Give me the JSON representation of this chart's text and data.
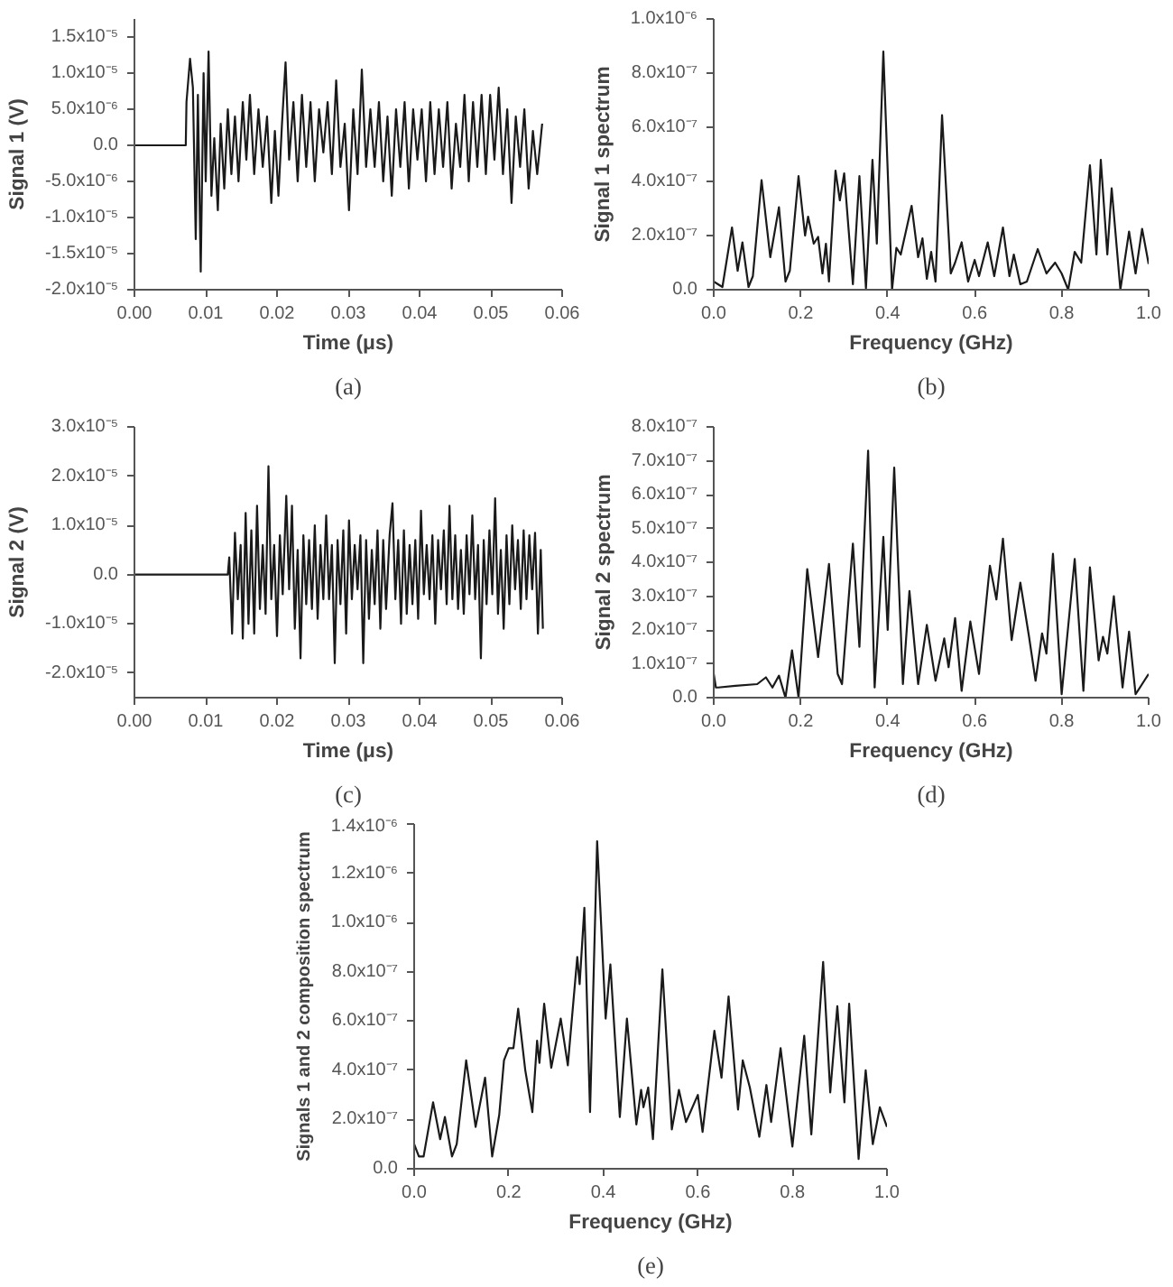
{
  "chart_data": [
    {
      "type": "line",
      "xlabel": "Time (μs)",
      "ylabel": "Signal 1 (V)",
      "annotations": [
        "(a)"
      ],
      "xlim": [
        0,
        0.06
      ],
      "ylim": [
        -2e-05,
        1.75e-05
      ],
      "xticks": [
        {
          "value": 0,
          "label": "0.00"
        },
        {
          "value": 0.01,
          "label": "0.01"
        },
        {
          "value": 0.02,
          "label": "0.02"
        },
        {
          "value": 0.03,
          "label": "0.03"
        },
        {
          "value": 0.04,
          "label": "0.04"
        },
        {
          "value": 0.05,
          "label": "0.05"
        },
        {
          "value": 0.06,
          "label": "0.06"
        }
      ],
      "yticks": [
        {
          "value": -2e-05,
          "label": "-2.0x10⁻⁵"
        },
        {
          "value": -1.5e-05,
          "label": "-1.5x10⁻⁵"
        },
        {
          "value": -1e-05,
          "label": "-1.0x10⁻⁵"
        },
        {
          "value": -5e-06,
          "label": "-5.0x10⁻⁶"
        },
        {
          "value": 0,
          "label": "0.0"
        },
        {
          "value": 5e-06,
          "label": "5.0x10⁻⁶"
        },
        {
          "value": 1e-05,
          "label": "1.0x10⁻⁵"
        },
        {
          "value": 1.5e-05,
          "label": "1.5x10⁻⁵"
        }
      ],
      "x": [
        0,
        0.0072,
        0.0073,
        0.0078,
        0.0082,
        0.0086,
        0.0089,
        0.0093,
        0.0097,
        0.01,
        0.0104,
        0.0108,
        0.0112,
        0.0117,
        0.0121,
        0.0126,
        0.0131,
        0.0136,
        0.0141,
        0.0146,
        0.0152,
        0.0157,
        0.0162,
        0.0168,
        0.0174,
        0.018,
        0.0186,
        0.0192,
        0.0197,
        0.0202,
        0.0207,
        0.0212,
        0.0217,
        0.0223,
        0.0229,
        0.0235,
        0.0241,
        0.0247,
        0.0253,
        0.0259,
        0.0265,
        0.0271,
        0.0277,
        0.0283,
        0.0289,
        0.0295,
        0.0301,
        0.0307,
        0.0313,
        0.0319,
        0.0325,
        0.0331,
        0.0337,
        0.0343,
        0.0349,
        0.0355,
        0.0361,
        0.0367,
        0.0373,
        0.0379,
        0.0385,
        0.0391,
        0.0397,
        0.0403,
        0.0409,
        0.0415,
        0.0421,
        0.0427,
        0.0433,
        0.0439,
        0.0445,
        0.0451,
        0.0457,
        0.0463,
        0.0469,
        0.0475,
        0.0481,
        0.0487,
        0.0493,
        0.0499,
        0.0505,
        0.0511,
        0.0517,
        0.0523,
        0.0529,
        0.0535,
        0.0541,
        0.0547,
        0.0553,
        0.0559,
        0.0565,
        0.0572
      ],
      "series": [
        {
          "color": "#1a1a1a",
          "values": [
            0,
            0,
            6e-06,
            1.2e-05,
            8e-06,
            -1.3e-05,
            7e-06,
            -1.75e-05,
            1e-05,
            -5e-06,
            1.3e-05,
            -7e-06,
            1e-06,
            -9e-06,
            3e-06,
            -6e-06,
            5e-06,
            -4e-06,
            4e-06,
            -5e-06,
            6e-06,
            -2e-06,
            7e-06,
            -4e-06,
            5e-06,
            -3e-06,
            4e-06,
            -8e-06,
            2e-06,
            -7e-06,
            3e-06,
            1.15e-05,
            -2e-06,
            6e-06,
            -5e-06,
            7e-06,
            -3e-06,
            6e-06,
            -5e-06,
            5e-06,
            -1e-06,
            6e-06,
            -4e-06,
            9e-06,
            -3e-06,
            3e-06,
            -9e-06,
            5e-06,
            -4e-06,
            1.05e-05,
            -3e-06,
            5e-06,
            -3e-06,
            6e-06,
            -5e-06,
            4e-06,
            -7e-06,
            5e-06,
            -3e-06,
            6e-06,
            -6e-06,
            5e-06,
            -2e-06,
            5e-06,
            -5e-06,
            6e-06,
            -4e-06,
            5e-06,
            -3e-06,
            6e-06,
            -6e-06,
            3e-06,
            -3e-06,
            7e-06,
            -5e-06,
            6e-06,
            -3e-06,
            7e-06,
            -4e-06,
            7e-06,
            -2e-06,
            8e-06,
            -4e-06,
            5e-06,
            -8e-06,
            4e-06,
            -3e-06,
            5e-06,
            -6e-06,
            2e-06,
            -4e-06,
            3e-06
          ]
        }
      ]
    },
    {
      "type": "line",
      "xlabel": "Frequency (GHz)",
      "ylabel": "Signal 1 spectrum",
      "annotations": [
        "(b)"
      ],
      "xlim": [
        0,
        1.0
      ],
      "ylim": [
        0,
        1e-06
      ],
      "xticks": [
        {
          "value": 0,
          "label": "0.0"
        },
        {
          "value": 0.2,
          "label": "0.2"
        },
        {
          "value": 0.4,
          "label": "0.4"
        },
        {
          "value": 0.6,
          "label": "0.6"
        },
        {
          "value": 0.8,
          "label": "0.8"
        },
        {
          "value": 1.0,
          "label": "1.0"
        }
      ],
      "yticks": [
        {
          "value": 0,
          "label": "0.0"
        },
        {
          "value": 2e-07,
          "label": "2.0x10⁻⁷"
        },
        {
          "value": 4e-07,
          "label": "4.0x10⁻⁷"
        },
        {
          "value": 6e-07,
          "label": "6.0x10⁻⁷"
        },
        {
          "value": 8e-07,
          "label": "8.0x10⁻⁷"
        },
        {
          "value": 1e-06,
          "label": "1.0x10⁻⁶"
        }
      ],
      "x": [
        0,
        0.01,
        0.02,
        0.042,
        0.055,
        0.066,
        0.08,
        0.09,
        0.11,
        0.13,
        0.15,
        0.165,
        0.175,
        0.195,
        0.21,
        0.217,
        0.23,
        0.24,
        0.25,
        0.258,
        0.265,
        0.28,
        0.29,
        0.3,
        0.32,
        0.335,
        0.35,
        0.365,
        0.375,
        0.39,
        0.41,
        0.42,
        0.43,
        0.455,
        0.47,
        0.48,
        0.49,
        0.5,
        0.51,
        0.525,
        0.545,
        0.555,
        0.57,
        0.585,
        0.6,
        0.61,
        0.63,
        0.645,
        0.665,
        0.68,
        0.69,
        0.705,
        0.72,
        0.745,
        0.765,
        0.785,
        0.8,
        0.815,
        0.83,
        0.845,
        0.865,
        0.88,
        0.89,
        0.905,
        0.915,
        0.935,
        0.955,
        0.97,
        0.985,
        1.0
      ],
      "series": [
        {
          "color": "#1a1a1a",
          "values": [
            3e-08,
            2e-08,
            1e-08,
            2.3e-07,
            7e-08,
            1.75e-07,
            1e-08,
            5e-08,
            4.05e-07,
            1.2e-07,
            3.05e-07,
            3e-08,
            7e-08,
            4.2e-07,
            2e-07,
            2.7e-07,
            1.7e-07,
            1.95e-07,
            6e-08,
            1.7e-07,
            3e-08,
            4.4e-07,
            3.3e-07,
            4.3e-07,
            2e-08,
            4.2e-07,
            5e-09,
            4.8e-07,
            1.7e-07,
            8.8e-07,
            0,
            1.55e-07,
            1.3e-07,
            3.1e-07,
            1.2e-07,
            1.9e-07,
            4e-08,
            1.4e-07,
            3e-08,
            6.45e-07,
            6e-08,
            1e-07,
            1.75e-07,
            3e-08,
            1.1e-07,
            5e-08,
            1.75e-07,
            5e-08,
            2.3e-07,
            5e-08,
            1.3e-07,
            2e-08,
            3e-08,
            1.5e-07,
            6e-08,
            1e-07,
            6e-08,
            0,
            1.4e-07,
            1e-07,
            4.6e-07,
            1.3e-07,
            4.8e-07,
            1.3e-07,
            3.75e-07,
            0,
            2.15e-07,
            6e-08,
            2.25e-07,
            9.5e-08
          ]
        }
      ]
    },
    {
      "type": "line",
      "xlabel": "Time (μs)",
      "ylabel": "Signal 2 (V)",
      "annotations": [
        "(c)"
      ],
      "xlim": [
        0,
        0.06
      ],
      "ylim": [
        -2.5e-05,
        3e-05
      ],
      "xticks": [
        {
          "value": 0,
          "label": "0.00"
        },
        {
          "value": 0.01,
          "label": "0.01"
        },
        {
          "value": 0.02,
          "label": "0.02"
        },
        {
          "value": 0.03,
          "label": "0.03"
        },
        {
          "value": 0.04,
          "label": "0.04"
        },
        {
          "value": 0.05,
          "label": "0.05"
        },
        {
          "value": 0.06,
          "label": "0.06"
        }
      ],
      "yticks": [
        {
          "value": -2e-05,
          "label": "-2.0x10⁻⁵"
        },
        {
          "value": -1e-05,
          "label": "-1.0x10⁻⁵"
        },
        {
          "value": 0,
          "label": "0.0"
        },
        {
          "value": 1e-05,
          "label": "1.0x10⁻⁵"
        },
        {
          "value": 2e-05,
          "label": "2.0x10⁻⁵"
        },
        {
          "value": 3e-05,
          "label": "3.0x10⁻⁵"
        }
      ],
      "x": [
        0,
        0.0131,
        0.0133,
        0.0137,
        0.0141,
        0.0145,
        0.0149,
        0.0152,
        0.0156,
        0.016,
        0.0164,
        0.0168,
        0.0172,
        0.0176,
        0.018,
        0.0184,
        0.0188,
        0.0192,
        0.0196,
        0.02,
        0.0204,
        0.0208,
        0.0213,
        0.0217,
        0.0221,
        0.0225,
        0.0229,
        0.0233,
        0.0237,
        0.0241,
        0.0245,
        0.0249,
        0.0253,
        0.0257,
        0.0261,
        0.0265,
        0.0269,
        0.0273,
        0.0277,
        0.0281,
        0.0285,
        0.0289,
        0.0293,
        0.0297,
        0.0301,
        0.0305,
        0.0309,
        0.0313,
        0.0317,
        0.0321,
        0.0325,
        0.0329,
        0.0333,
        0.0337,
        0.0341,
        0.0345,
        0.0349,
        0.0353,
        0.0358,
        0.0362,
        0.0366,
        0.037,
        0.0374,
        0.0378,
        0.0382,
        0.0386,
        0.039,
        0.0394,
        0.0398,
        0.0402,
        0.0406,
        0.041,
        0.0414,
        0.0418,
        0.0422,
        0.0426,
        0.043,
        0.0434,
        0.0438,
        0.0442,
        0.0446,
        0.045,
        0.0454,
        0.0458,
        0.0462,
        0.0466,
        0.047,
        0.0474,
        0.0478,
        0.0482,
        0.0486,
        0.049,
        0.0494,
        0.0498,
        0.0502,
        0.0506,
        0.051,
        0.0514,
        0.0518,
        0.0522,
        0.0526,
        0.053,
        0.0534,
        0.0538,
        0.0542,
        0.0546,
        0.055,
        0.0554,
        0.0558,
        0.0562,
        0.0566,
        0.057,
        0.0573
      ],
      "series": [
        {
          "color": "#1a1a1a",
          "values": [
            0,
            0,
            3.5e-06,
            -1.2e-05,
            8.5e-06,
            -5e-06,
            6e-06,
            -1.3e-05,
            1.25e-05,
            -1e-05,
            9e-06,
            -1.2e-05,
            1.4e-05,
            -7e-06,
            6e-06,
            -8e-06,
            2.2e-05,
            -5e-06,
            6e-06,
            -1.25e-05,
            8e-06,
            -4e-06,
            1.6e-05,
            -3e-06,
            1.4e-05,
            -1.1e-05,
            5e-06,
            -1.7e-05,
            8e-06,
            -6e-06,
            7e-06,
            -7e-06,
            1e-05,
            -9e-06,
            6e-06,
            -5e-06,
            1.2e-05,
            -5e-06,
            6e-06,
            -1.8e-05,
            7e-06,
            -6e-06,
            9e-06,
            -1.2e-05,
            1.1e-05,
            -5e-06,
            6e-06,
            -3e-06,
            8e-06,
            -1.8e-05,
            7e-06,
            -9e-06,
            5e-06,
            -6e-06,
            9e-06,
            -1.1e-05,
            7e-06,
            -7e-06,
            8e-06,
            1.45e-05,
            -5e-06,
            7e-06,
            -1e-05,
            9e-06,
            -8e-06,
            6e-06,
            -6e-06,
            7e-06,
            -9e-06,
            1.3e-05,
            -4e-06,
            6e-06,
            -5e-06,
            8e-06,
            -1e-05,
            7e-06,
            -3e-06,
            9e-06,
            -6e-06,
            1.4e-05,
            -5e-06,
            8e-06,
            -7e-06,
            5e-06,
            -8e-06,
            8e-06,
            -4e-06,
            1.2e-05,
            -5e-06,
            6e-06,
            -1.7e-05,
            7e-06,
            -6e-06,
            9e-06,
            -4e-06,
            1.55e-05,
            -8e-06,
            5e-06,
            -1.1e-05,
            8e-06,
            -6e-06,
            1e-05,
            -3e-06,
            7e-06,
            -7e-06,
            9e-06,
            -5e-06,
            8e-06,
            -3e-06,
            8.5e-06,
            -1.2e-05,
            5e-06,
            -1.1e-05
          ]
        }
      ]
    },
    {
      "type": "line",
      "xlabel": "Frequency (GHz)",
      "ylabel": "Signal 2 spectrum",
      "annotations": [
        "(d)"
      ],
      "xlim": [
        0,
        1.0
      ],
      "ylim": [
        0,
        8e-07
      ],
      "xticks": [
        {
          "value": 0,
          "label": "0.0"
        },
        {
          "value": 0.2,
          "label": "0.2"
        },
        {
          "value": 0.4,
          "label": "0.4"
        },
        {
          "value": 0.6,
          "label": "0.6"
        },
        {
          "value": 0.8,
          "label": "0.8"
        },
        {
          "value": 1.0,
          "label": "1.0"
        }
      ],
      "yticks": [
        {
          "value": 0,
          "label": "0.0"
        },
        {
          "value": 1e-07,
          "label": "1.0x10⁻⁷"
        },
        {
          "value": 2e-07,
          "label": "2.0x10⁻⁷"
        },
        {
          "value": 3e-07,
          "label": "3.0x10⁻⁷"
        },
        {
          "value": 4e-07,
          "label": "4.0x10⁻⁷"
        },
        {
          "value": 5e-07,
          "label": "5.0x10⁻⁷"
        },
        {
          "value": 6e-07,
          "label": "6.0x10⁻⁷"
        },
        {
          "value": 7e-07,
          "label": "7.0x10⁻⁷"
        },
        {
          "value": 8e-07,
          "label": "8.0x10⁻⁷"
        }
      ],
      "x": [
        0,
        0.005,
        0.01,
        0.05,
        0.1,
        0.12,
        0.135,
        0.15,
        0.165,
        0.18,
        0.195,
        0.215,
        0.24,
        0.265,
        0.285,
        0.295,
        0.32,
        0.335,
        0.355,
        0.37,
        0.39,
        0.4,
        0.415,
        0.435,
        0.45,
        0.47,
        0.49,
        0.51,
        0.53,
        0.54,
        0.555,
        0.57,
        0.59,
        0.61,
        0.635,
        0.65,
        0.665,
        0.685,
        0.705,
        0.725,
        0.74,
        0.755,
        0.765,
        0.78,
        0.8,
        0.83,
        0.85,
        0.865,
        0.885,
        0.895,
        0.905,
        0.92,
        0.94,
        0.955,
        0.97,
        0.985,
        1.0
      ],
      "series": [
        {
          "color": "#1a1a1a",
          "values": [
            7e-08,
            3e-08,
            3e-08,
            3.5e-08,
            4e-08,
            6e-08,
            3e-08,
            6.5e-08,
            0,
            1.4e-07,
            0,
            3.8e-07,
            1.2e-07,
            3.95e-07,
            7e-08,
            4e-08,
            4.55e-07,
            1.5e-07,
            7.3e-07,
            3e-08,
            4.75e-07,
            2e-07,
            6.8e-07,
            4e-08,
            3.15e-07,
            4e-08,
            2.15e-07,
            5e-08,
            1.75e-07,
            9e-08,
            2.35e-07,
            2e-08,
            2.25e-07,
            7e-08,
            3.9e-07,
            2.9e-07,
            4.7e-07,
            1.7e-07,
            3.4e-07,
            1.8e-07,
            5e-08,
            1.9e-07,
            1.3e-07,
            4.25e-07,
            1e-08,
            4.1e-07,
            2e-08,
            3.85e-07,
            1.1e-07,
            1.8e-07,
            1.3e-07,
            3e-07,
            3e-08,
            1.95e-07,
            1e-08,
            4e-08,
            7e-08
          ]
        }
      ]
    },
    {
      "type": "line",
      "xlabel": "Frequency (GHz)",
      "ylabel": "Signals 1 and 2 composition spectrum",
      "annotations": [
        "(e)"
      ],
      "xlim": [
        0,
        1.0
      ],
      "ylim": [
        0,
        1.4e-06
      ],
      "xticks": [
        {
          "value": 0,
          "label": "0.0"
        },
        {
          "value": 0.2,
          "label": "0.2"
        },
        {
          "value": 0.4,
          "label": "0.4"
        },
        {
          "value": 0.6,
          "label": "0.6"
        },
        {
          "value": 0.8,
          "label": "0.8"
        },
        {
          "value": 1.0,
          "label": "1.0"
        }
      ],
      "yticks": [
        {
          "value": 0,
          "label": "0.0"
        },
        {
          "value": 2e-07,
          "label": "2.0x10⁻⁷"
        },
        {
          "value": 4e-07,
          "label": "4.0x10⁻⁷"
        },
        {
          "value": 6e-07,
          "label": "6.0x10⁻⁷"
        },
        {
          "value": 8e-07,
          "label": "8.0x10⁻⁷"
        },
        {
          "value": 1e-06,
          "label": "1.0x10⁻⁶"
        },
        {
          "value": 1.2e-06,
          "label": "1.2x10⁻⁶"
        },
        {
          "value": 1.4e-06,
          "label": "1.4x10⁻⁶"
        }
      ],
      "x": [
        0,
        0.01,
        0.02,
        0.04,
        0.055,
        0.065,
        0.08,
        0.09,
        0.11,
        0.13,
        0.15,
        0.165,
        0.18,
        0.19,
        0.2,
        0.21,
        0.22,
        0.235,
        0.25,
        0.26,
        0.265,
        0.275,
        0.29,
        0.31,
        0.325,
        0.345,
        0.35,
        0.36,
        0.372,
        0.387,
        0.405,
        0.415,
        0.435,
        0.45,
        0.47,
        0.48,
        0.485,
        0.495,
        0.505,
        0.525,
        0.545,
        0.56,
        0.575,
        0.6,
        0.61,
        0.635,
        0.65,
        0.665,
        0.685,
        0.695,
        0.71,
        0.73,
        0.745,
        0.755,
        0.775,
        0.8,
        0.825,
        0.84,
        0.865,
        0.88,
        0.895,
        0.91,
        0.92,
        0.94,
        0.955,
        0.97,
        0.985,
        1.0
      ],
      "series": [
        {
          "color": "#1a1a1a",
          "values": [
            1e-07,
            5e-08,
            5e-08,
            2.7e-07,
            1.2e-07,
            2.1e-07,
            5e-08,
            1e-07,
            4.4e-07,
            1.7e-07,
            3.7e-07,
            5e-08,
            2.2e-07,
            4.4e-07,
            4.9e-07,
            4.9e-07,
            6.5e-07,
            4e-07,
            2.3e-07,
            5.2e-07,
            4.3e-07,
            6.7e-07,
            4.1e-07,
            6.1e-07,
            4.2e-07,
            8.6e-07,
            7.5e-07,
            1.06e-06,
            2.3e-07,
            1.33e-06,
            6.1e-07,
            8.3e-07,
            2.1e-07,
            6.1e-07,
            1.8e-07,
            3.2e-07,
            2.5e-07,
            3.3e-07,
            1.2e-07,
            8.1e-07,
            1.6e-07,
            3.2e-07,
            1.9e-07,
            3e-07,
            1.5e-07,
            5.6e-07,
            3.7e-07,
            7e-07,
            2.4e-07,
            4.4e-07,
            3.3e-07,
            1.3e-07,
            3.4e-07,
            1.9e-07,
            4.9e-07,
            9e-08,
            5.4e-07,
            1.4e-07,
            8.4e-07,
            3.1e-07,
            6.6e-07,
            2.7e-07,
            6.7e-07,
            4e-08,
            4e-07,
            1e-07,
            2.5e-07,
            1.7e-07
          ]
        }
      ]
    }
  ]
}
